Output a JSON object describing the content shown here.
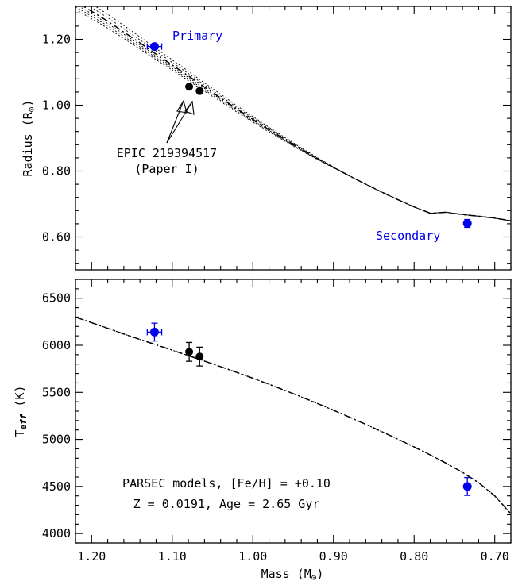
{
  "colors": {
    "primary": "#0000ee",
    "secondary": "#0000ee",
    "reference": "#000000",
    "line": "#000000"
  },
  "chart_data": [
    {
      "type": "scatter",
      "panel": "top",
      "ylabel_main": "Radius (R",
      "ylabel_sub": "⊙",
      "ylabel_end": ")",
      "xlim": [
        1.22,
        0.68
      ],
      "ylim": [
        0.5,
        1.3
      ],
      "xticks": [
        1.2,
        1.1,
        1.0,
        0.9,
        0.8,
        0.7
      ],
      "yticks": [
        0.6,
        0.8,
        1.0,
        1.2
      ],
      "ytick_labels": [
        "0.60",
        "0.80",
        "1.00",
        "1.20"
      ],
      "series": [
        {
          "name": "Primary",
          "color": "#0000ee",
          "x": 1.122,
          "y": 1.178,
          "xerr": 0.009,
          "yerr": 0.008
        },
        {
          "name": "Secondary",
          "color": "#0000ee",
          "x": 0.734,
          "y": 0.641,
          "xerr": 0.003,
          "yerr": 0.012
        },
        {
          "name": "EPIC 219394517 A",
          "color": "#000000",
          "x": 1.079,
          "y": 1.056,
          "xerr": 0.0,
          "yerr": 0.0
        },
        {
          "name": "EPIC 219394517 B",
          "color": "#000000",
          "x": 1.066,
          "y": 1.043,
          "xerr": 0.0,
          "yerr": 0.0
        }
      ],
      "model_curve": {
        "x": [
          1.22,
          1.2,
          1.18,
          1.16,
          1.14,
          1.12,
          1.1,
          1.08,
          1.06,
          1.04,
          1.02,
          1.0,
          0.98,
          0.96,
          0.94,
          0.92,
          0.9,
          0.88,
          0.86,
          0.84,
          0.82,
          0.8,
          0.78,
          0.76,
          0.74,
          0.72,
          0.7,
          0.68
        ],
        "y": [
          1.315,
          1.285,
          1.255,
          1.222,
          1.189,
          1.155,
          1.122,
          1.089,
          1.055,
          1.022,
          0.989,
          0.957,
          0.926,
          0.896,
          0.866,
          0.838,
          0.811,
          0.785,
          0.76,
          0.736,
          0.713,
          0.691,
          0.672,
          0.675,
          0.668,
          0.663,
          0.657,
          0.649
        ]
      },
      "isochrone_spread": [
        0.0,
        -0.008,
        -0.016,
        -0.024,
        0.012,
        0.024
      ],
      "annotations": {
        "primary": "Primary",
        "secondary": "Secondary",
        "epic_line1": "EPIC 219394517",
        "epic_line2": "(Paper I)"
      }
    },
    {
      "type": "scatter",
      "panel": "bottom",
      "xlabel_main": "Mass (M",
      "xlabel_sub": "⊙",
      "xlabel_end": ")",
      "ylabel_main": "T",
      "ylabel_sub": "eff",
      "ylabel_end": " (K)",
      "xlim": [
        1.22,
        0.68
      ],
      "ylim": [
        3900,
        6700
      ],
      "xticks": [
        1.2,
        1.1,
        1.0,
        0.9,
        0.8,
        0.7
      ],
      "xtick_labels": [
        "1.20",
        "1.10",
        "1.00",
        "0.90",
        "0.80",
        "0.70"
      ],
      "yticks": [
        4000,
        4500,
        5000,
        5500,
        6000,
        6500
      ],
      "ytick_labels": [
        "4000",
        "4500",
        "5000",
        "5500",
        "6000",
        "6500"
      ],
      "series": [
        {
          "name": "Primary",
          "color": "#0000ee",
          "x": 1.122,
          "y": 6140,
          "xerr": 0.009,
          "yerr": 95
        },
        {
          "name": "Secondary",
          "color": "#0000ee",
          "x": 0.734,
          "y": 4500,
          "xerr": 0.003,
          "yerr": 95
        },
        {
          "name": "EPIC 219394517 A",
          "color": "#000000",
          "x": 1.079,
          "y": 5930,
          "xerr": 0.0,
          "yerr": 100
        },
        {
          "name": "EPIC 219394517 B",
          "color": "#000000",
          "x": 1.066,
          "y": 5880,
          "xerr": 0.0,
          "yerr": 100
        }
      ],
      "model_curve": {
        "x": [
          1.22,
          1.2,
          1.18,
          1.16,
          1.14,
          1.12,
          1.1,
          1.08,
          1.06,
          1.04,
          1.02,
          1.0,
          0.98,
          0.96,
          0.94,
          0.92,
          0.9,
          0.88,
          0.86,
          0.84,
          0.82,
          0.8,
          0.78,
          0.76,
          0.74,
          0.72,
          0.7,
          0.68
        ],
        "y": [
          6300,
          6240,
          6180,
          6120,
          6062,
          6005,
          5948,
          5890,
          5832,
          5773,
          5712,
          5650,
          5586,
          5520,
          5452,
          5382,
          5310,
          5236,
          5160,
          5082,
          5002,
          4920,
          4835,
          4746,
          4650,
          4540,
          4400,
          4210
        ]
      },
      "annotations": {
        "models_line1": "PARSEC models, [Fe/H] = +0.10",
        "models_line2": "Z = 0.0191, Age = 2.65 Gyr"
      }
    }
  ]
}
